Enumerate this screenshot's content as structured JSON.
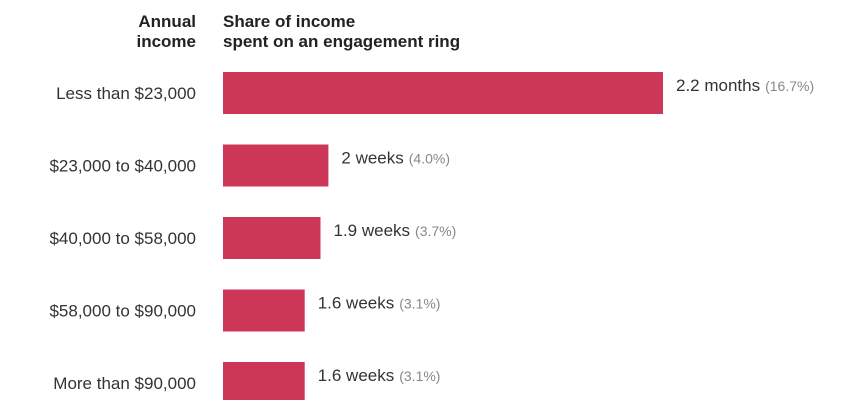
{
  "header": {
    "left_line1": "Annual",
    "left_line2": "income",
    "right_line1": "Share of income",
    "right_line2": "spent on an engagement ring"
  },
  "colors": {
    "bar": "#cc3657",
    "label_text": "#333333",
    "pct_text": "#888888"
  },
  "chart_data": {
    "type": "bar",
    "orientation": "horizontal",
    "title": "",
    "xlabel": "Share of income spent on an engagement ring",
    "ylabel": "Annual income",
    "categories": [
      "Less than $23,000",
      "$23,000 to $40,000",
      "$40,000 to $58,000",
      "$58,000 to $90,000",
      "More than $90,000"
    ],
    "values": [
      16.7,
      4.0,
      3.7,
      3.1,
      3.1
    ],
    "value_labels": [
      "2.2 months",
      "2 weeks",
      "1.9 weeks",
      "1.6 weeks",
      "1.6 weeks"
    ],
    "pct_labels": [
      "(16.7%)",
      "(4.0%)",
      "(3.7%)",
      "(3.1%)",
      "(3.1%)"
    ],
    "xlim": [
      0,
      16.7
    ],
    "grid": false,
    "legend": "none"
  }
}
